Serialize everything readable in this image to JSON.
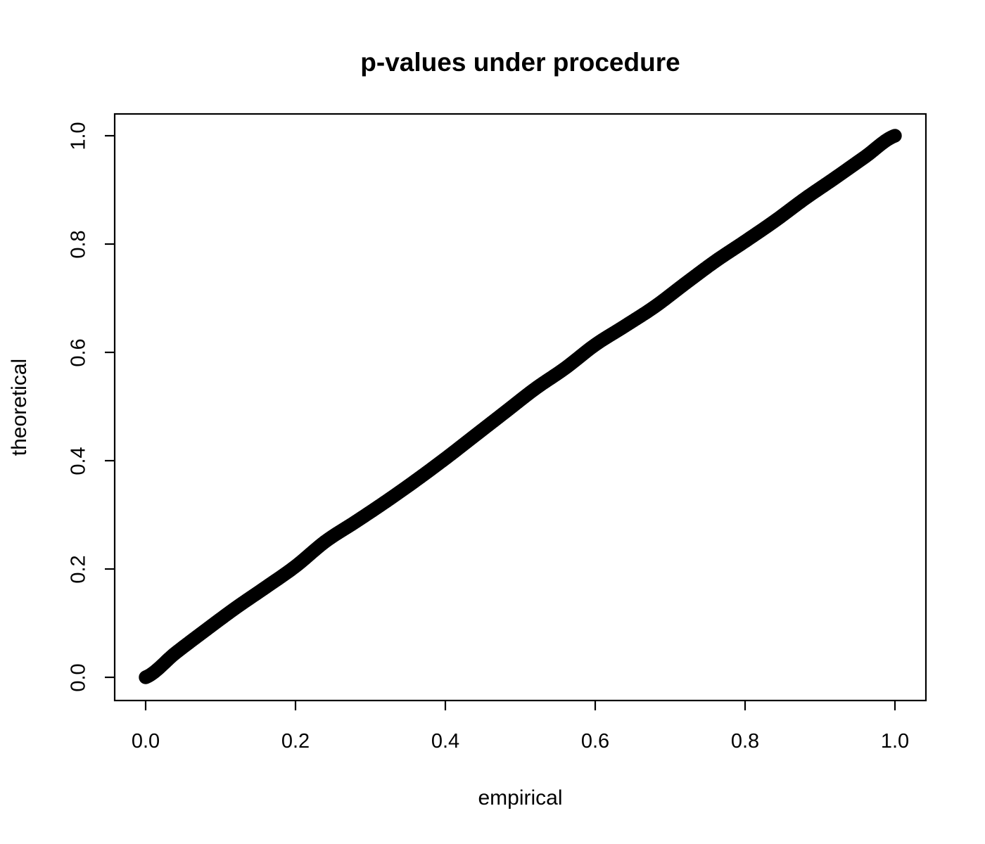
{
  "chart_data": {
    "type": "scatter",
    "title": "p-values under procedure",
    "xlabel": "empirical",
    "ylabel": "theoretical",
    "xlim": [
      0,
      1
    ],
    "ylim": [
      0,
      1
    ],
    "grid": false,
    "legend": false,
    "marker": "open-circle",
    "marker_color": "#000000",
    "background_color": "#ffffff",
    "axis_color": "#000000",
    "x_ticks": {
      "values": [
        0,
        0.2,
        0.4,
        0.6,
        0.8,
        1.0
      ],
      "labels": [
        "0.0",
        "0.2",
        "0.4",
        "0.6",
        "0.8",
        "1.0"
      ]
    },
    "y_ticks": {
      "values": [
        0,
        0.2,
        0.4,
        0.6,
        0.8,
        1.0
      ],
      "labels": [
        "0.0",
        "0.2",
        "0.4",
        "0.6",
        "0.8",
        "1.0"
      ]
    },
    "n_points": 1000,
    "curve_anchors": {
      "x": [
        0.0,
        0.04,
        0.08,
        0.12,
        0.16,
        0.2,
        0.24,
        0.28,
        0.32,
        0.36,
        0.4,
        0.44,
        0.48,
        0.52,
        0.56,
        0.6,
        0.64,
        0.68,
        0.72,
        0.76,
        0.8,
        0.84,
        0.88,
        0.92,
        0.96,
        1.0
      ],
      "y": [
        0.0,
        0.045,
        0.087,
        0.128,
        0.166,
        0.205,
        0.251,
        0.287,
        0.324,
        0.363,
        0.404,
        0.447,
        0.49,
        0.533,
        0.571,
        0.614,
        0.649,
        0.685,
        0.727,
        0.768,
        0.805,
        0.843,
        0.884,
        0.922,
        0.961,
        1.0
      ]
    }
  }
}
